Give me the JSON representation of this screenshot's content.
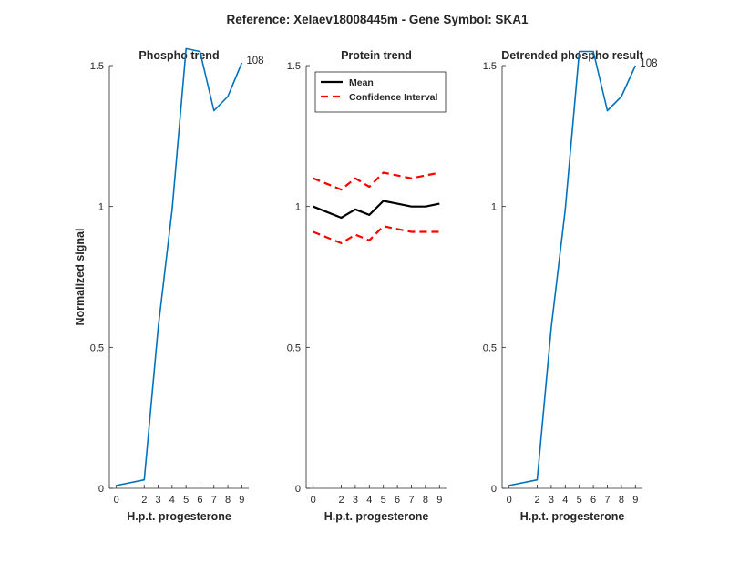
{
  "figure": {
    "title": "Reference:  Xelaev18008445m - Gene Symbol:  SKA1"
  },
  "chart_data": [
    {
      "type": "line",
      "title": "Phospho trend",
      "xlabel": "H.p.t. progesterone",
      "ylabel": "Normalized signal",
      "xlim": [
        -0.5,
        9.5
      ],
      "ylim": [
        0,
        1.5
      ],
      "x_ticks": [
        "0",
        "2",
        "3",
        "4",
        "5",
        "6",
        "7",
        "8",
        "9"
      ],
      "y_ticks": [
        "0",
        "0.5",
        "1",
        "1.5"
      ],
      "grid": false,
      "series": [
        {
          "color": "#0072BD",
          "end_label": "108",
          "values": [
            0.01,
            0.03,
            0.57,
            0.99,
            1.56,
            1.55,
            1.34,
            1.39,
            1.51
          ]
        }
      ]
    },
    {
      "type": "line",
      "title": "Protein trend",
      "xlabel": "H.p.t. progesterone",
      "ylabel": "",
      "xlim": [
        -0.5,
        9.5
      ],
      "ylim": [
        0,
        1.5
      ],
      "x_ticks": [
        "0",
        "2",
        "3",
        "4",
        "5",
        "6",
        "7",
        "8",
        "9"
      ],
      "y_ticks": [
        "0",
        "0.5",
        "1",
        "1.5"
      ],
      "grid": false,
      "legend": "top-right",
      "series": [
        {
          "name": "Mean",
          "color": "#000000",
          "style": "solid",
          "values": [
            1.0,
            0.96,
            0.99,
            0.97,
            1.02,
            1.01,
            1.0,
            1.0,
            1.01
          ]
        },
        {
          "name": "Confidence Interval",
          "color": "#FF0000",
          "style": "dashed",
          "values": [
            1.1,
            1.06,
            1.1,
            1.07,
            1.12,
            1.11,
            1.1,
            1.11,
            1.12
          ]
        },
        {
          "color": "#FF0000",
          "style": "dashed",
          "values": [
            0.91,
            0.87,
            0.9,
            0.88,
            0.93,
            0.92,
            0.91,
            0.91,
            0.91
          ]
        }
      ]
    },
    {
      "type": "line",
      "title": "Detrended phospho result",
      "xlabel": "H.p.t. progesterone",
      "ylabel": "",
      "xlim": [
        -0.5,
        9.5
      ],
      "ylim": [
        0,
        1.5
      ],
      "x_ticks": [
        "0",
        "2",
        "3",
        "4",
        "5",
        "6",
        "7",
        "8",
        "9"
      ],
      "y_ticks": [
        "0",
        "0.5",
        "1",
        "1.5"
      ],
      "grid": false,
      "series": [
        {
          "color": "#0072BD",
          "end_label": "108",
          "values": [
            0.01,
            0.03,
            0.57,
            0.99,
            1.55,
            1.55,
            1.34,
            1.39,
            1.5
          ]
        }
      ]
    }
  ]
}
